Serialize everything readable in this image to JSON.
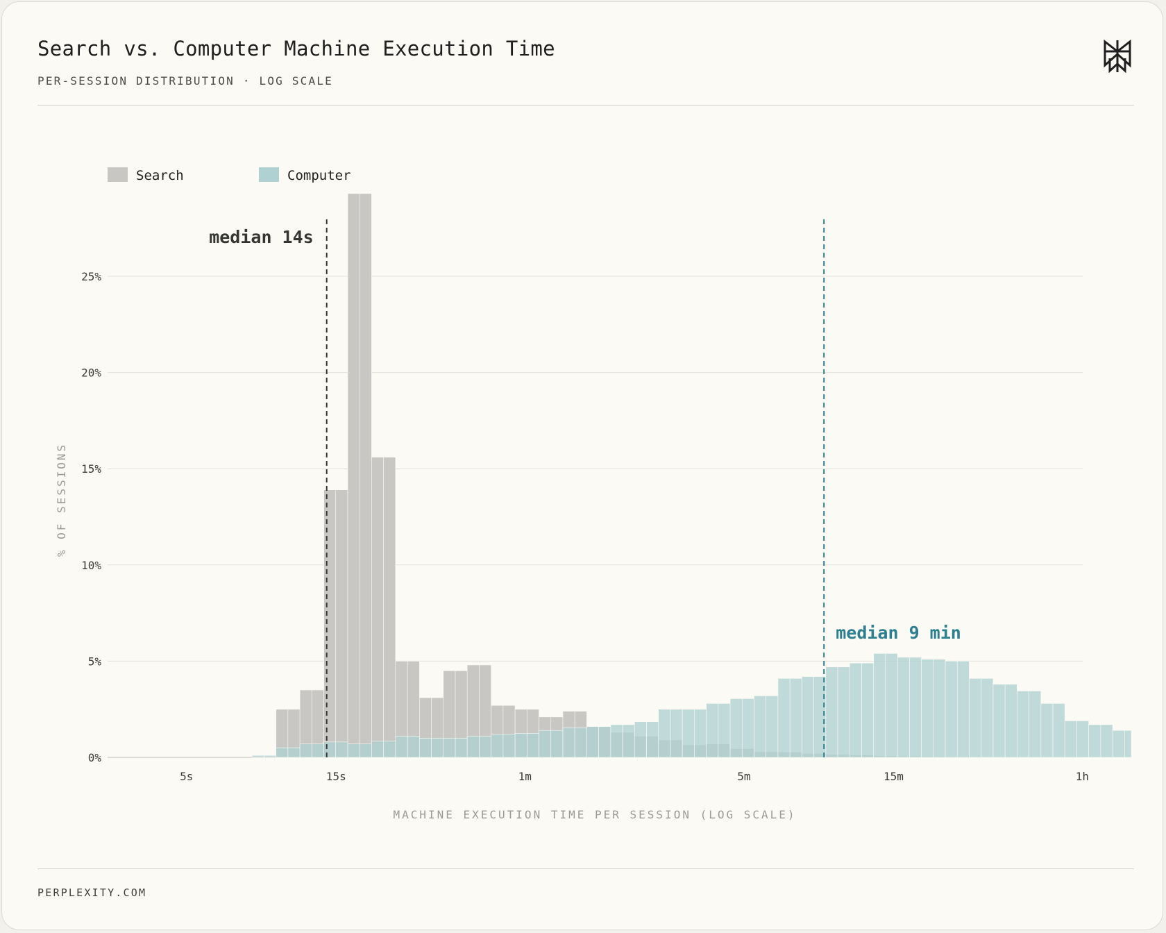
{
  "header": {
    "title": "Search vs. Computer Machine Execution Time",
    "subtitle": "PER-SESSION DISTRIBUTION · LOG SCALE",
    "logo_icon": "perplexity-logo-icon"
  },
  "footer": {
    "text": "PERPLEXITY.COM"
  },
  "chart_data": {
    "type": "bar",
    "title": "Search vs. Computer Machine Execution Time",
    "subtitle": "PER-SESSION DISTRIBUTION · LOG SCALE",
    "xlabel": "MACHINE EXECUTION TIME PER SESSION (LOG SCALE)",
    "ylabel": "% OF SESSIONS",
    "x_scale": "log",
    "x_unit": "seconds",
    "x_range_seconds": [
      2.8,
      5160
    ],
    "ylim": [
      0,
      29
    ],
    "y_ticks": [
      {
        "value": 0,
        "label": "0%"
      },
      {
        "value": 5,
        "label": "5%"
      },
      {
        "value": 10,
        "label": "10%"
      },
      {
        "value": 15,
        "label": "15%"
      },
      {
        "value": 20,
        "label": "20%"
      },
      {
        "value": 25,
        "label": "25%"
      }
    ],
    "x_ticks": [
      {
        "seconds": 5,
        "label": "5s"
      },
      {
        "seconds": 15,
        "label": "15s"
      },
      {
        "seconds": 60,
        "label": "1m"
      },
      {
        "seconds": 300,
        "label": "5m"
      },
      {
        "seconds": 900,
        "label": "15m"
      },
      {
        "seconds": 3600,
        "label": "1h"
      }
    ],
    "grid": true,
    "legend_position": "top-left",
    "bin_edges_seconds": [
      2.82,
      3.08,
      3.36,
      3.67,
      4.01,
      4.38,
      4.78,
      5.22,
      5.7,
      6.22,
      6.79,
      7.41,
      8.09,
      8.84,
      9.65,
      10.53,
      11.5,
      12.55,
      13.71,
      14.96,
      16.34,
      17.84,
      19.47,
      21.26,
      23.21,
      25.34,
      27.67,
      30.21,
      32.98,
      36.0,
      39.3,
      42.91,
      46.85,
      51.15,
      55.84,
      60.96,
      66.55,
      72.66,
      79.33,
      86.6,
      94.55,
      103.2,
      112.7,
      123.0,
      134.3,
      146.7,
      160.1,
      174.8,
      190.8,
      208.3,
      227.5,
      248.3,
      271.1,
      296.0,
      323.2,
      352.8,
      385.2,
      420.5,
      459.1,
      501.2,
      547.2,
      597.4,
      652.2,
      712.1,
      777.4,
      848.7,
      926.6,
      1011.6,
      1104.4,
      1205.8,
      1316.4,
      1437.2,
      1569.0,
      1713.0,
      1870.2,
      2041.8,
      2229.1,
      2433.6,
      2657.0,
      2900.8,
      3166.9,
      3457.5,
      3774.8,
      4121.1,
      4499.2,
      4912.1,
      5160.0
    ],
    "series": [
      {
        "name": "Search",
        "color": "#c8c7c3",
        "values": [
          0,
          0,
          0,
          0,
          0,
          0,
          0,
          0,
          0,
          0,
          0,
          0,
          0,
          0,
          2.5,
          2.5,
          3.5,
          3.5,
          13.9,
          13.9,
          29.3,
          29.3,
          15.6,
          15.6,
          5.0,
          5.0,
          3.1,
          3.1,
          4.5,
          4.5,
          4.8,
          4.8,
          2.7,
          2.7,
          2.5,
          2.5,
          2.1,
          2.1,
          2.4,
          2.4,
          1.6,
          1.6,
          1.3,
          1.3,
          1.1,
          1.1,
          0.9,
          0.9,
          0.65,
          0.65,
          0.7,
          0.7,
          0.45,
          0.45,
          0.3,
          0.3,
          0.28,
          0.28,
          0.2,
          0.2,
          0.15,
          0.15,
          0.12,
          0.12,
          0.08,
          0.08,
          0.06,
          0.06,
          0.05,
          0.05,
          0.04,
          0.04,
          0.03,
          0.03,
          0.02,
          0.02,
          0.02,
          0.02,
          0.01,
          0.01,
          0.01,
          0.01,
          0.01,
          0.01,
          0.01,
          0.01
        ]
      },
      {
        "name": "Computer",
        "color": "#b0d1d2",
        "values": [
          0,
          0,
          0,
          0,
          0,
          0,
          0,
          0,
          0,
          0,
          0,
          0,
          0.1,
          0.1,
          0.5,
          0.5,
          0.7,
          0.7,
          0.8,
          0.8,
          0.7,
          0.7,
          0.85,
          0.85,
          1.1,
          1.1,
          1.0,
          1.0,
          1.0,
          1.0,
          1.1,
          1.1,
          1.2,
          1.2,
          1.25,
          1.25,
          1.4,
          1.4,
          1.55,
          1.55,
          1.6,
          1.6,
          1.7,
          1.7,
          1.85,
          1.85,
          2.5,
          2.5,
          2.5,
          2.5,
          2.8,
          2.8,
          3.05,
          3.05,
          3.2,
          3.2,
          4.1,
          4.1,
          4.2,
          4.2,
          4.7,
          4.7,
          4.9,
          4.9,
          5.4,
          5.4,
          5.2,
          5.2,
          5.1,
          5.1,
          5.0,
          5.0,
          4.1,
          4.1,
          3.8,
          3.8,
          3.45,
          3.45,
          2.8,
          2.8,
          1.9,
          1.9,
          1.7,
          1.7,
          1.4,
          1.4
        ]
      }
    ],
    "medians": [
      {
        "series": "Search",
        "seconds": 14,
        "label": "median 14s",
        "color": "#353533"
      },
      {
        "series": "Computer",
        "seconds": 540,
        "label": "median 9 min",
        "color": "#2b7f8e"
      }
    ]
  }
}
